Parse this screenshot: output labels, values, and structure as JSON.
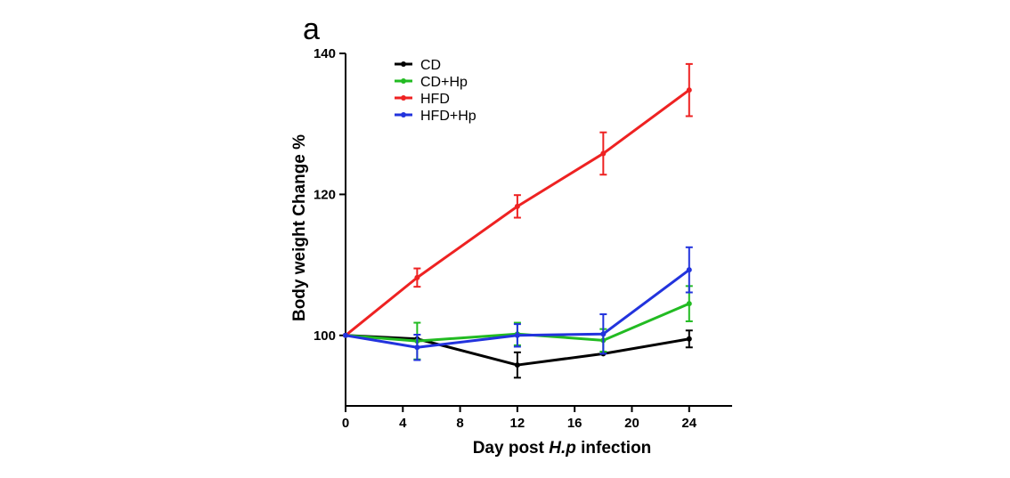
{
  "panel_label": "a",
  "chart_data": {
    "type": "line",
    "title": "",
    "xlabel_prefix": "Day post ",
    "xlabel_italic": "H.p",
    "xlabel_suffix": " infection",
    "ylabel": "Body weight Change %",
    "xlim": [
      0,
      27
    ],
    "ylim": [
      90,
      140
    ],
    "xticks": [
      0,
      4,
      8,
      12,
      16,
      20,
      24
    ],
    "yticks": [
      100,
      120,
      140
    ],
    "legend_position": "top-left",
    "series": [
      {
        "name": "CD",
        "color": "#000000",
        "x": [
          0,
          5,
          12,
          18,
          24
        ],
        "y": [
          100,
          99.5,
          95.8,
          97.4,
          99.5
        ],
        "err": [
          0,
          0,
          1.8,
          0,
          1.2
        ]
      },
      {
        "name": "CD+Hp",
        "color": "#22bb22",
        "x": [
          0,
          5,
          12,
          18,
          24
        ],
        "y": [
          100,
          99.2,
          100.2,
          99.3,
          104.5
        ],
        "err": [
          0,
          2.6,
          1.6,
          1.6,
          2.5
        ]
      },
      {
        "name": "HFD",
        "color": "#ee2222",
        "x": [
          0,
          5,
          12,
          18,
          24
        ],
        "y": [
          100,
          108.2,
          118.3,
          125.8,
          134.8
        ],
        "err": [
          0,
          1.3,
          1.6,
          3.0,
          3.7
        ]
      },
      {
        "name": "HFD+Hp",
        "color": "#2233dd",
        "x": [
          0,
          5,
          12,
          18,
          24
        ],
        "y": [
          100,
          98.3,
          100,
          100.2,
          109.3
        ],
        "err": [
          0,
          1.8,
          1.6,
          2.8,
          3.2
        ]
      }
    ]
  }
}
